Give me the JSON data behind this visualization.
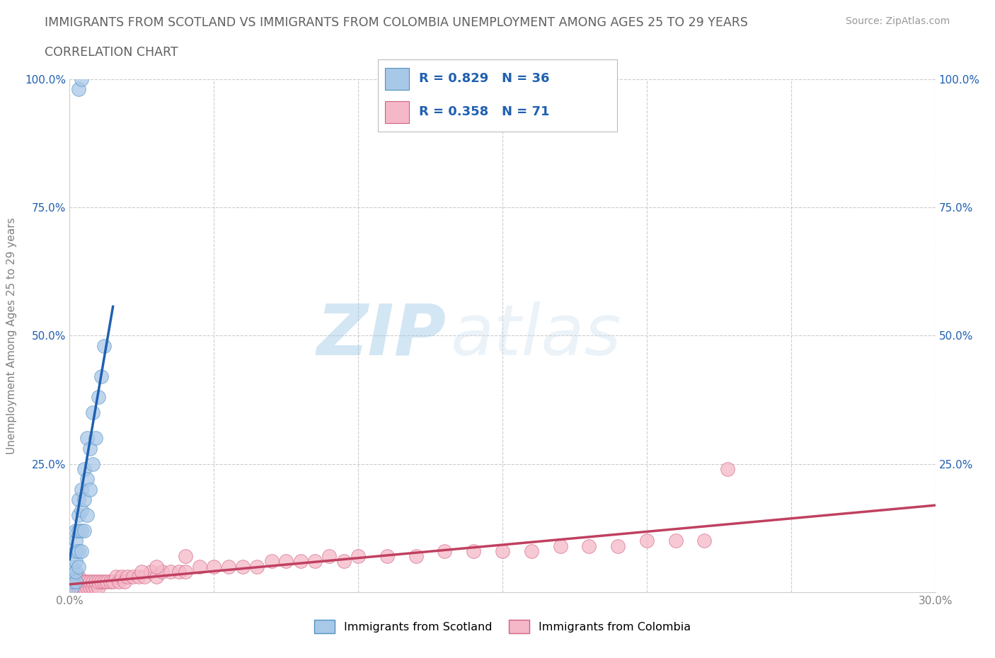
{
  "title_line1": "IMMIGRANTS FROM SCOTLAND VS IMMIGRANTS FROM COLOMBIA UNEMPLOYMENT AMONG AGES 25 TO 29 YEARS",
  "title_line2": "CORRELATION CHART",
  "source_text": "Source: ZipAtlas.com",
  "ylabel": "Unemployment Among Ages 25 to 29 years",
  "xlim": [
    0,
    0.3
  ],
  "ylim": [
    0,
    1.0
  ],
  "xticks": [
    0.0,
    0.05,
    0.1,
    0.15,
    0.2,
    0.25,
    0.3
  ],
  "yticks": [
    0.0,
    0.25,
    0.5,
    0.75,
    1.0
  ],
  "xtick_labels": [
    "0.0%",
    "",
    "",
    "",
    "",
    "",
    "30.0%"
  ],
  "ytick_labels_left": [
    "",
    "25.0%",
    "50.0%",
    "75.0%",
    "100.0%"
  ],
  "ytick_labels_right": [
    "",
    "25.0%",
    "50.0%",
    "75.0%",
    "100.0%"
  ],
  "scotland_color": "#a8c8e8",
  "colombia_color": "#f5b8c8",
  "scotland_edge_color": "#5090c0",
  "colombia_edge_color": "#d06080",
  "scotland_line_color": "#2060b0",
  "colombia_line_color": "#c04060",
  "scotland_R": 0.829,
  "scotland_N": 36,
  "colombia_R": 0.358,
  "colombia_N": 71,
  "legend_label1": "Immigrants from Scotland",
  "legend_label2": "Immigrants from Colombia",
  "watermark_zip": "ZIP",
  "watermark_atlas": "atlas",
  "background_color": "#ffffff",
  "grid_color": "#cccccc",
  "title_color": "#606060",
  "legend_text_color": "#2060b0",
  "axis_label_color": "#808080",
  "tick_label_color": "#2060b0",
  "scotland_x": [
    0.001,
    0.001,
    0.001,
    0.001,
    0.001,
    0.002,
    0.002,
    0.002,
    0.002,
    0.002,
    0.002,
    0.003,
    0.003,
    0.003,
    0.003,
    0.003,
    0.004,
    0.004,
    0.004,
    0.004,
    0.005,
    0.005,
    0.005,
    0.006,
    0.006,
    0.006,
    0.007,
    0.007,
    0.008,
    0.008,
    0.009,
    0.01,
    0.011,
    0.012,
    0.003,
    0.004
  ],
  "scotland_y": [
    0.01,
    0.02,
    0.03,
    0.04,
    0.05,
    0.02,
    0.04,
    0.06,
    0.08,
    0.1,
    0.12,
    0.05,
    0.08,
    0.12,
    0.15,
    0.18,
    0.08,
    0.12,
    0.16,
    0.2,
    0.12,
    0.18,
    0.24,
    0.15,
    0.22,
    0.3,
    0.2,
    0.28,
    0.25,
    0.35,
    0.3,
    0.38,
    0.42,
    0.48,
    0.98,
    1.0
  ],
  "colombia_x": [
    0.001,
    0.001,
    0.001,
    0.002,
    0.002,
    0.002,
    0.003,
    0.003,
    0.003,
    0.004,
    0.004,
    0.004,
    0.005,
    0.005,
    0.006,
    0.006,
    0.007,
    0.007,
    0.008,
    0.008,
    0.009,
    0.009,
    0.01,
    0.01,
    0.011,
    0.012,
    0.013,
    0.014,
    0.015,
    0.016,
    0.017,
    0.018,
    0.019,
    0.02,
    0.022,
    0.024,
    0.026,
    0.028,
    0.03,
    0.032,
    0.035,
    0.038,
    0.04,
    0.045,
    0.05,
    0.055,
    0.06,
    0.065,
    0.07,
    0.075,
    0.08,
    0.085,
    0.09,
    0.095,
    0.1,
    0.11,
    0.12,
    0.13,
    0.14,
    0.15,
    0.16,
    0.17,
    0.18,
    0.19,
    0.2,
    0.21,
    0.22,
    0.03,
    0.04,
    0.228,
    0.025
  ],
  "colombia_y": [
    0.0,
    0.01,
    0.02,
    0.0,
    0.01,
    0.02,
    0.01,
    0.02,
    0.03,
    0.0,
    0.01,
    0.02,
    0.01,
    0.02,
    0.01,
    0.02,
    0.01,
    0.02,
    0.01,
    0.02,
    0.01,
    0.02,
    0.01,
    0.02,
    0.02,
    0.02,
    0.02,
    0.02,
    0.02,
    0.03,
    0.02,
    0.03,
    0.02,
    0.03,
    0.03,
    0.03,
    0.03,
    0.04,
    0.03,
    0.04,
    0.04,
    0.04,
    0.04,
    0.05,
    0.05,
    0.05,
    0.05,
    0.05,
    0.06,
    0.06,
    0.06,
    0.06,
    0.07,
    0.06,
    0.07,
    0.07,
    0.07,
    0.08,
    0.08,
    0.08,
    0.08,
    0.09,
    0.09,
    0.09,
    0.1,
    0.1,
    0.1,
    0.05,
    0.07,
    0.24,
    0.04
  ]
}
